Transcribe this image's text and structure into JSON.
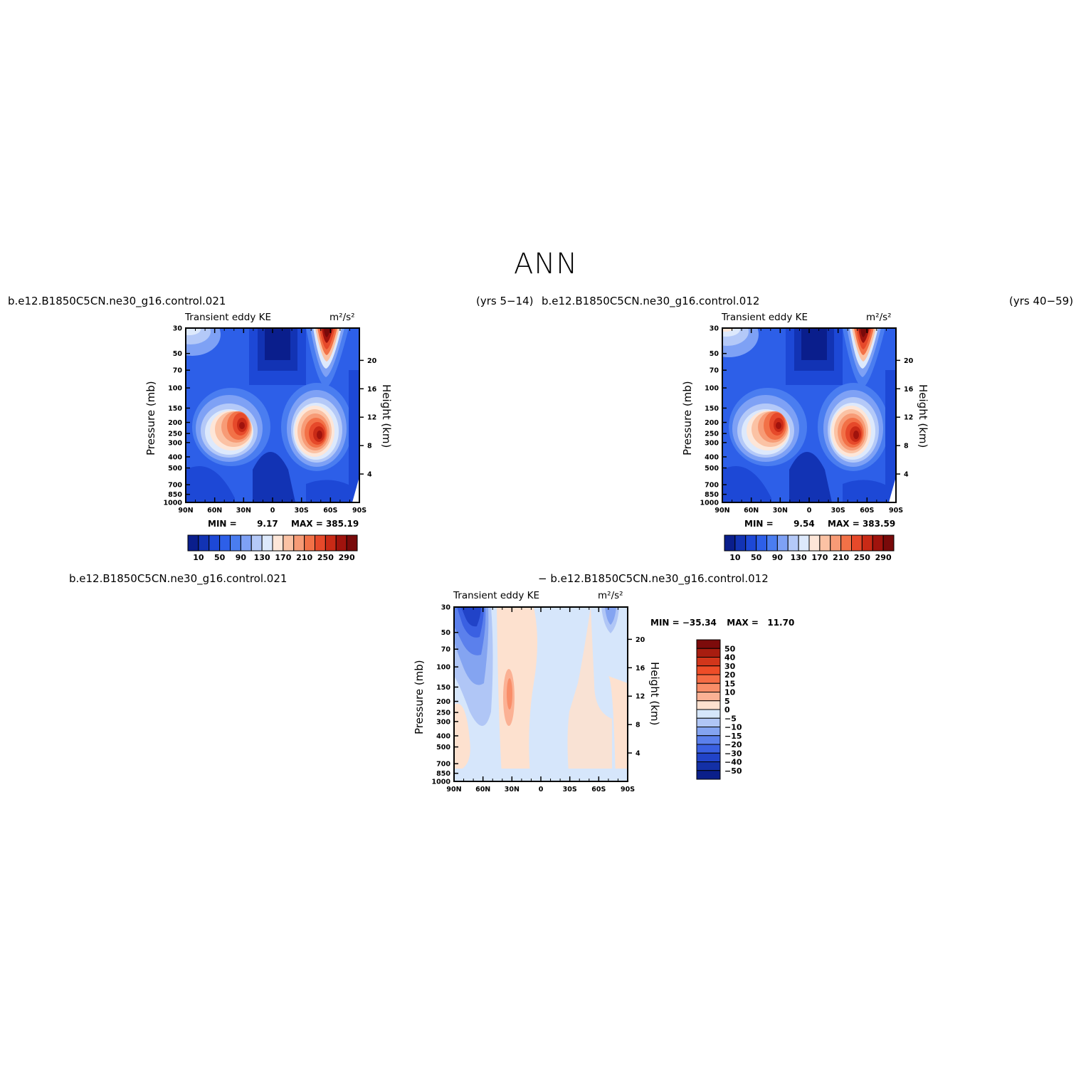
{
  "figure": {
    "season": "ANN",
    "panel_top_left": {
      "case_name": "b.e12.B1850C5CN.ne30_g16.control.021",
      "years": "(yrs 5−14)",
      "variable": "Transient eddy KE",
      "units": "m²/s²",
      "min_label": "MIN =",
      "min_value": "9.17",
      "max_label": "MAX =",
      "max_value": "385.19"
    },
    "panel_top_right": {
      "case_name": "b.e12.B1850C5CN.ne30_g16.control.012",
      "years": "(yrs 40−59)",
      "variable": "Transient eddy KE",
      "units": "m²/s²",
      "min_label": "MIN =",
      "min_value": "9.54",
      "max_label": "MAX =",
      "max_value": "383.59"
    },
    "panel_diff": {
      "case_a": "b.e12.B1850C5CN.ne30_g16.control.021",
      "case_b": "− b.e12.B1850C5CN.ne30_g16.control.012",
      "variable": "Transient eddy KE",
      "units": "m²/s²",
      "min_label": "MIN =",
      "min_value": "−35.34",
      "max_label": "MAX =",
      "max_value": "11.70"
    }
  },
  "axes": {
    "ylabel_left": "Pressure (mb)",
    "ylabel_right": "Height (km)",
    "pressure_ticks": [
      "30",
      "50",
      "70",
      "100",
      "150",
      "200",
      "250",
      "300",
      "400",
      "500",
      "700",
      "850",
      "1000"
    ],
    "height_ticks": [
      "20",
      "16",
      "12",
      "8",
      "4"
    ],
    "lat_ticks": [
      "90N",
      "60N",
      "30N",
      "0",
      "30S",
      "60S",
      "90S"
    ]
  },
  "colorbars": {
    "abs_labels": [
      "10",
      "50",
      "90",
      "130",
      "170",
      "210",
      "250",
      "290"
    ],
    "abs_colors": [
      "#0a1e8c",
      "#1233b4",
      "#1d48d6",
      "#2d5fe8",
      "#4a7df0",
      "#7ea1f5",
      "#b4c9f8",
      "#dde9fc",
      "#fde6d8",
      "#fbc2a4",
      "#f79b76",
      "#f27147",
      "#e6492a",
      "#c92a16",
      "#a0130d",
      "#790a0a"
    ],
    "diff_labels": [
      "50",
      "40",
      "30",
      "20",
      "15",
      "10",
      "5",
      "0",
      "−5",
      "−10",
      "−15",
      "−20",
      "−30",
      "−40",
      "−50"
    ],
    "diff_colors": [
      "#7d0b0b",
      "#a81d10",
      "#d2361b",
      "#ee4d28",
      "#f56c45",
      "#f98d68",
      "#fbb194",
      "#fde1cf",
      "#d6e6fb",
      "#b0c6f6",
      "#84a4f1",
      "#5b80ec",
      "#3a60e2",
      "#2143c8",
      "#1330a6",
      "#0b1f8a"
    ]
  },
  "chart_data": [
    {
      "type": "heatmap",
      "title": "Transient eddy KE",
      "units": "m²/s²",
      "x_categories": [
        "90N",
        "60N",
        "30N",
        "0",
        "30S",
        "60S",
        "90S"
      ],
      "y_levels_mb": [
        30,
        50,
        70,
        100,
        150,
        200,
        250,
        300,
        400,
        500,
        700,
        850,
        1000
      ],
      "values": [
        [
          150,
          60,
          40,
          20,
          60,
          330,
          90
        ],
        [
          110,
          50,
          40,
          20,
          60,
          280,
          80
        ],
        [
          80,
          60,
          40,
          20,
          70,
          230,
          80
        ],
        [
          60,
          60,
          80,
          30,
          90,
          190,
          80
        ],
        [
          50,
          110,
          230,
          70,
          200,
          200,
          90
        ],
        [
          60,
          180,
          340,
          80,
          280,
          230,
          90
        ],
        [
          70,
          200,
          360,
          90,
          330,
          250,
          80
        ],
        [
          70,
          190,
          330,
          80,
          360,
          270,
          80
        ],
        [
          60,
          150,
          230,
          60,
          310,
          250,
          70
        ],
        [
          50,
          100,
          150,
          40,
          220,
          190,
          60
        ],
        [
          40,
          50,
          60,
          20,
          100,
          110,
          50
        ],
        [
          40,
          40,
          40,
          20,
          60,
          70,
          40
        ],
        [
          30,
          30,
          30,
          20,
          40,
          50,
          30
        ]
      ],
      "min": 9.17,
      "max": 385.19
    },
    {
      "type": "heatmap",
      "title": "Transient eddy KE",
      "units": "m²/s²",
      "x_categories": [
        "90N",
        "60N",
        "30N",
        "0",
        "30S",
        "60S",
        "90S"
      ],
      "y_levels_mb": [
        30,
        50,
        70,
        100,
        150,
        200,
        250,
        300,
        400,
        500,
        700,
        850,
        1000
      ],
      "values": [
        [
          190,
          60,
          40,
          20,
          60,
          330,
          90
        ],
        [
          130,
          50,
          40,
          20,
          60,
          280,
          80
        ],
        [
          90,
          60,
          40,
          20,
          70,
          230,
          80
        ],
        [
          60,
          60,
          80,
          30,
          90,
          190,
          80
        ],
        [
          50,
          110,
          220,
          70,
          200,
          200,
          90
        ],
        [
          60,
          180,
          330,
          80,
          280,
          230,
          90
        ],
        [
          70,
          200,
          350,
          90,
          340,
          250,
          80
        ],
        [
          70,
          190,
          320,
          80,
          370,
          270,
          80
        ],
        [
          60,
          150,
          230,
          60,
          320,
          250,
          70
        ],
        [
          50,
          100,
          150,
          40,
          220,
          190,
          60
        ],
        [
          40,
          50,
          60,
          20,
          100,
          110,
          50
        ],
        [
          40,
          40,
          40,
          20,
          60,
          70,
          40
        ],
        [
          30,
          30,
          30,
          20,
          40,
          50,
          30
        ]
      ],
      "min": 9.54,
      "max": 383.59
    },
    {
      "type": "heatmap",
      "title": "Transient eddy KE",
      "units": "m²/s²",
      "x_categories": [
        "90N",
        "60N",
        "30N",
        "0",
        "30S",
        "60S",
        "90S"
      ],
      "y_levels_mb": [
        30,
        50,
        70,
        100,
        150,
        200,
        250,
        300,
        400,
        500,
        700,
        850,
        1000
      ],
      "values": [
        [
          -35,
          -30,
          2,
          2,
          -2,
          2,
          -12
        ],
        [
          -25,
          -20,
          2,
          1,
          -2,
          2,
          -6
        ],
        [
          -18,
          -14,
          2,
          1,
          -2,
          2,
          -3
        ],
        [
          -14,
          -10,
          2,
          1,
          -2,
          2,
          -2
        ],
        [
          -10,
          -8,
          6,
          1,
          -2,
          -2,
          -2
        ],
        [
          -7,
          -6,
          9,
          1,
          -2,
          2,
          -2
        ],
        [
          -5,
          -4,
          9,
          1,
          -2,
          2,
          -2
        ],
        [
          -4,
          -3,
          7,
          1,
          2,
          -2,
          -2
        ],
        [
          -2,
          -3,
          5,
          1,
          2,
          2,
          -2
        ],
        [
          2,
          -2,
          4,
          -2,
          2,
          2,
          -2
        ],
        [
          2,
          -2,
          2,
          -2,
          2,
          -2,
          2
        ],
        [
          2,
          -2,
          2,
          -2,
          2,
          -2,
          2
        ],
        [
          -2,
          -2,
          2,
          -2,
          -2,
          -2,
          2
        ]
      ],
      "min": -35.34,
      "max": 11.7
    }
  ]
}
